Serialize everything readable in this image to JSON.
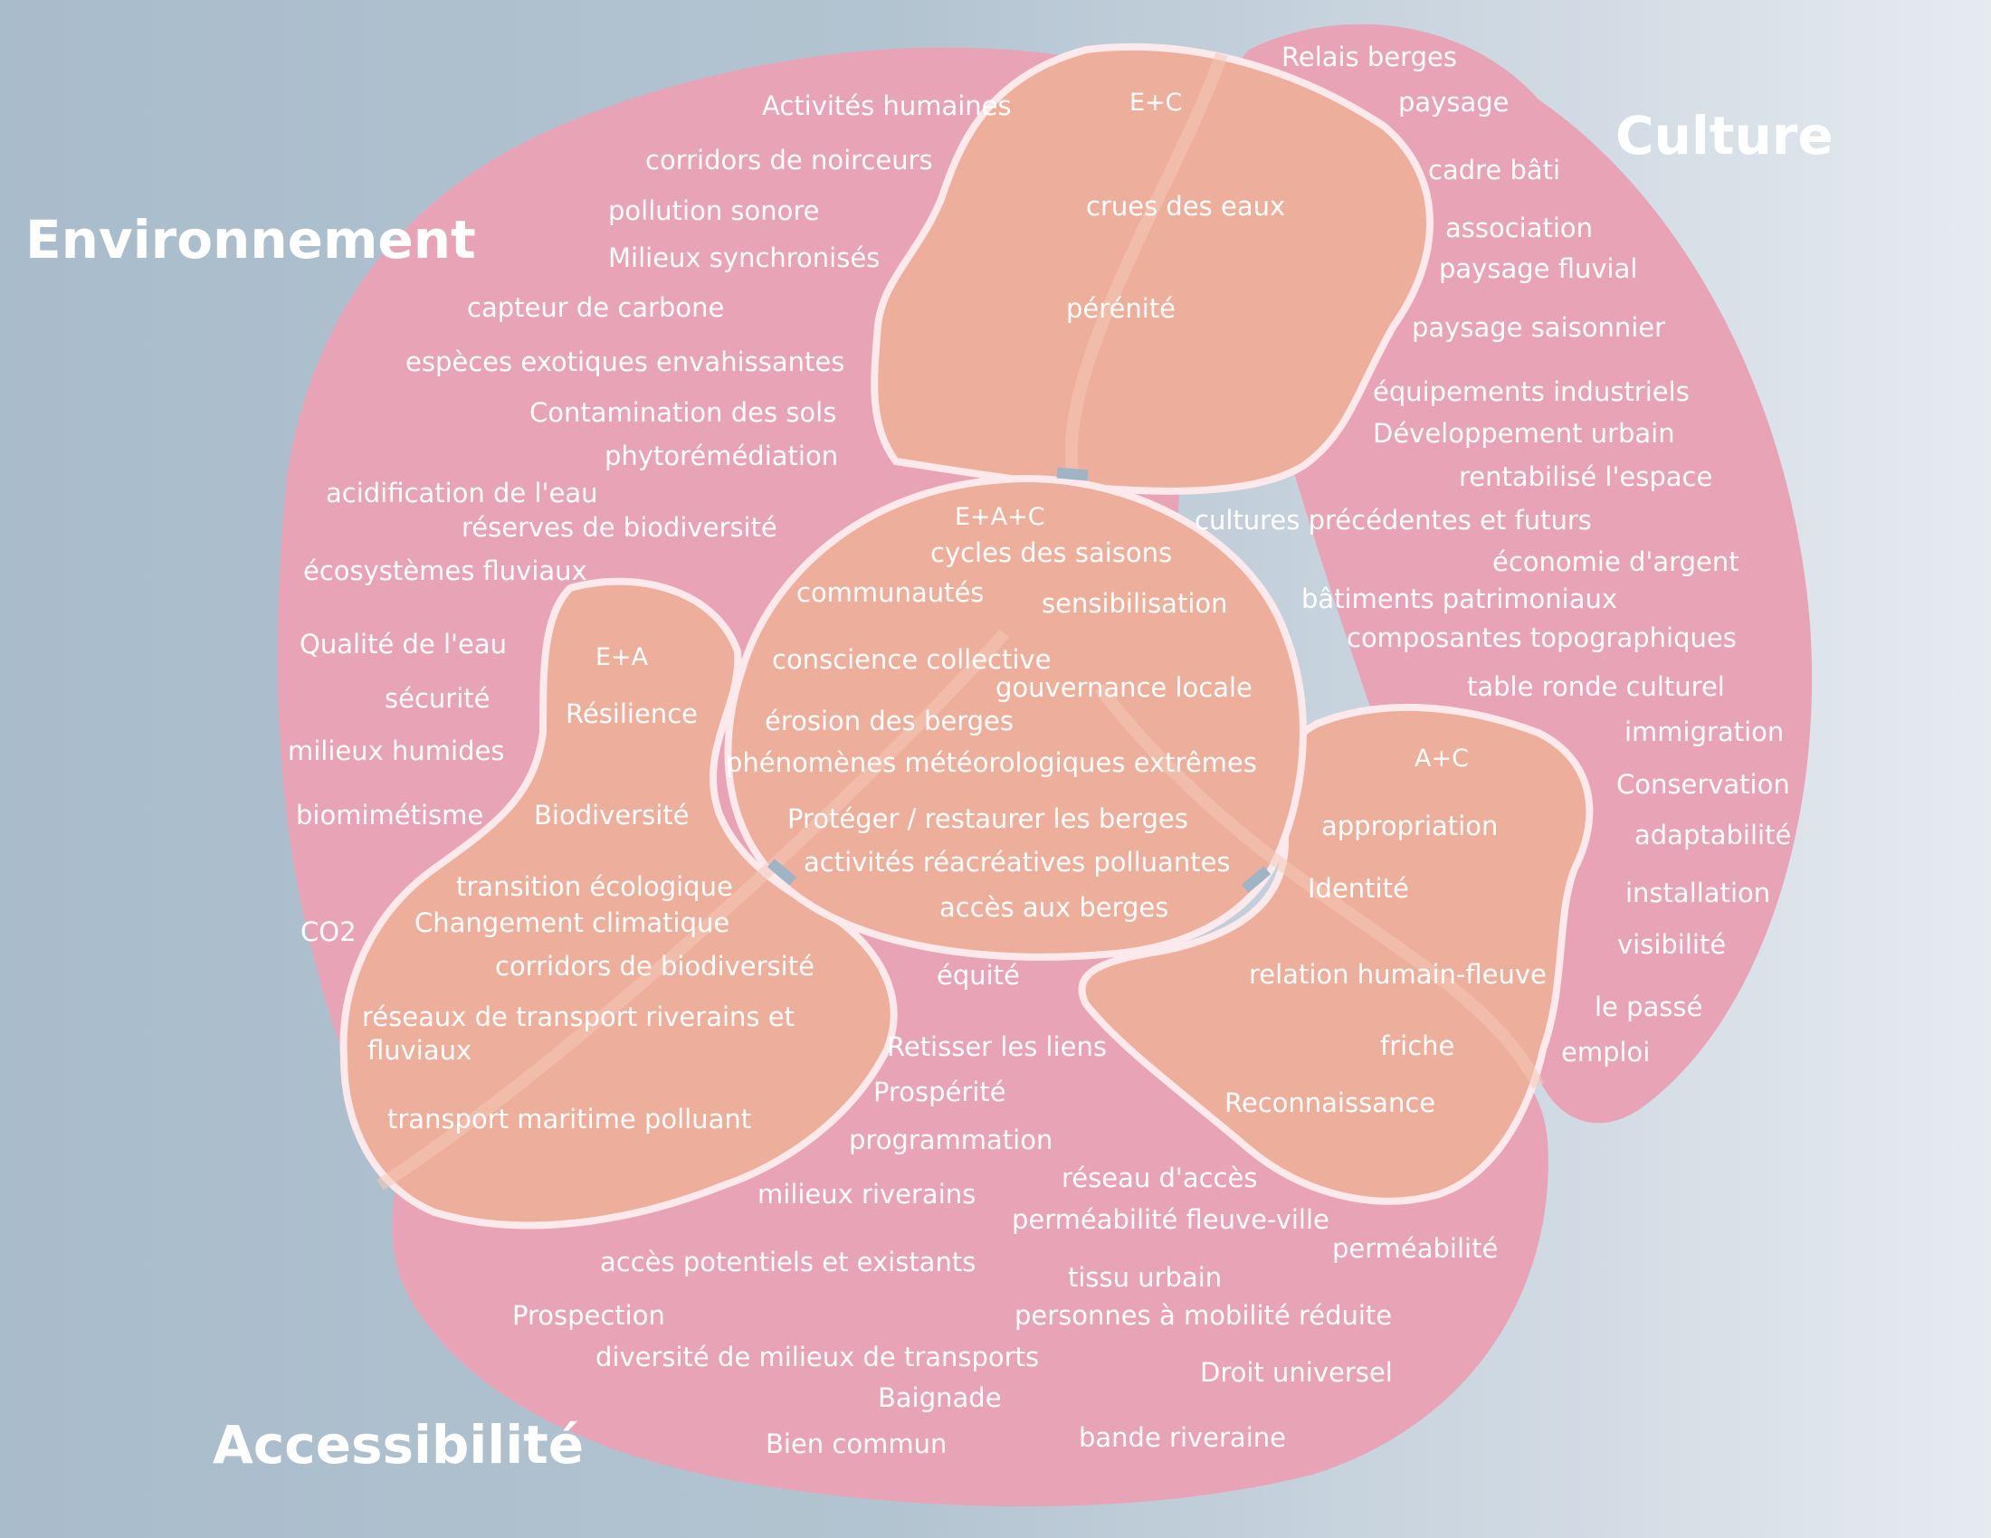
{
  "categories": {
    "environnement": "Environnement",
    "culture": "Culture",
    "accessibilite": "Accessibilité"
  },
  "zones": {
    "ec": {
      "tag": "E+C",
      "items": [
        "crues des eaux",
        "pérénité"
      ]
    },
    "ea": {
      "tag": "E+A",
      "items": [
        "Résilience",
        "Biodiversité"
      ]
    },
    "ac": {
      "tag": "A+C",
      "items": [
        "appropriation",
        "Identité",
        "relation humain-fleuve",
        "friche",
        "Reconnaissance"
      ]
    },
    "eac": {
      "tag": "E+A+C",
      "items": [
        "cycles des saisons",
        "communautés",
        "sensibilisation",
        "conscience collective",
        "gouvernance locale",
        "érosion des berges",
        "phénomènes météorologiques extrêmes",
        "Protéger / restaurer les berges",
        "activités réacréatives polluantes",
        "accès aux berges"
      ]
    }
  },
  "environnement_items": [
    "Activités humaines",
    "corridors de noirceurs",
    "pollution sonore",
    "Milieux synchronisés",
    "capteur de carbone",
    "espèces exotiques envahissantes",
    "Contamination des sols",
    "phytorémédiation",
    "acidification de l'eau",
    "réserves de biodiversité",
    "écosystèmes fluviaux",
    "Qualité de l'eau",
    "sécurité",
    "milieux humides",
    "biomimétisme",
    "transition écologique",
    "Changement climatique",
    "corridors de biodiversité",
    "réseaux de transport riverains et",
    "fluviaux",
    "transport maritime polluant",
    "CO2"
  ],
  "culture_items": [
    "Relais berges",
    "paysage",
    "cadre bâti",
    "association",
    "paysage fluvial",
    "paysage saisonnier",
    "équipements industriels",
    "Développement urbain",
    "rentabilisé l'espace",
    "cultures précédentes et futurs",
    "économie d'argent",
    "bâtiments patrimoniaux",
    "composantes topographiques",
    "table ronde culturel",
    "immigration",
    "Conservation",
    "adaptabilité",
    "installation",
    "visibilité",
    "le passé",
    "emploi"
  ],
  "accessibilite_items": [
    "équité",
    "Retisser les liens",
    "Prospérité",
    "programmation",
    "réseau d'accès",
    "milieux riverains",
    "perméabilité fleuve-ville",
    "perméabilité",
    "accès potentiels et existants",
    "tissu urbain",
    "Prospection",
    "personnes à mobilité réduite",
    "diversité de milieux de transports",
    "Droit universel",
    "Baignade",
    "Bien commun",
    "bande riveraine"
  ],
  "colors": {
    "background_left": "#a9bccb",
    "background_right": "#e6ebf0",
    "blob_pink": "#e8a3b6",
    "overlap_salmon": "#eeae9c",
    "outline": "#fbe9ec",
    "connector": "#9fb4c4"
  }
}
